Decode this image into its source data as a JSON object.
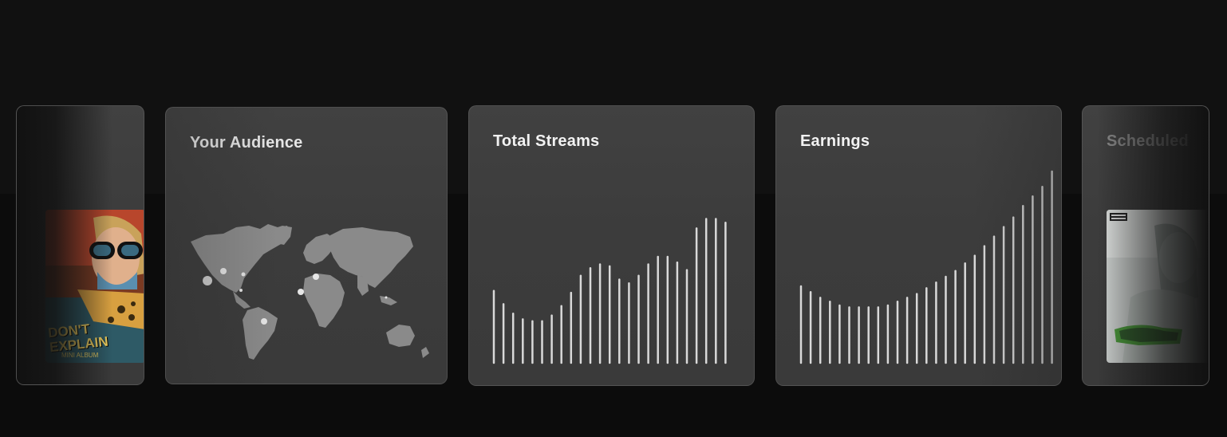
{
  "carousel": {
    "cards": [
      {
        "id": "release-left",
        "title": "",
        "album_art_text": "DON'T EXPLAIN",
        "album_art_subtitle": "MINI ALBUM"
      },
      {
        "id": "audience",
        "title": "Your Audience"
      },
      {
        "id": "streams",
        "title": "Total Streams"
      },
      {
        "id": "earnings",
        "title": "Earnings"
      },
      {
        "id": "scheduled",
        "title": "Scheduled"
      }
    ]
  },
  "colors": {
    "page_bg": "#0c0c0c",
    "card_bg": "#3d3d3d",
    "bar": "#d9d9d9",
    "map_land": "#8a8a8a",
    "dot": "#e6e6e6"
  },
  "audience_map": {
    "hotspots": [
      {
        "region": "North America West"
      },
      {
        "region": "North America Central"
      },
      {
        "region": "North America East"
      },
      {
        "region": "Mexico"
      },
      {
        "region": "Brazil"
      },
      {
        "region": "Europe West"
      },
      {
        "region": "Europe Central"
      },
      {
        "region": "East Asia"
      }
    ]
  },
  "streams_chart": {
    "type": "bar",
    "values": [
      38,
      31,
      26,
      23,
      22,
      22,
      25,
      30,
      37,
      46,
      50,
      52,
      51,
      44,
      42,
      46,
      52,
      56,
      56,
      53,
      49,
      71,
      76,
      76,
      74
    ],
    "ylim": [
      0,
      80
    ]
  },
  "earnings_chart": {
    "type": "bar",
    "values": [
      40,
      37,
      34,
      32,
      30,
      29,
      29,
      29,
      29,
      30,
      32,
      34,
      36,
      39,
      42,
      45,
      48,
      52,
      56,
      61,
      66,
      71,
      76,
      82,
      87,
      92,
      100
    ],
    "ylim": [
      0,
      100
    ]
  }
}
